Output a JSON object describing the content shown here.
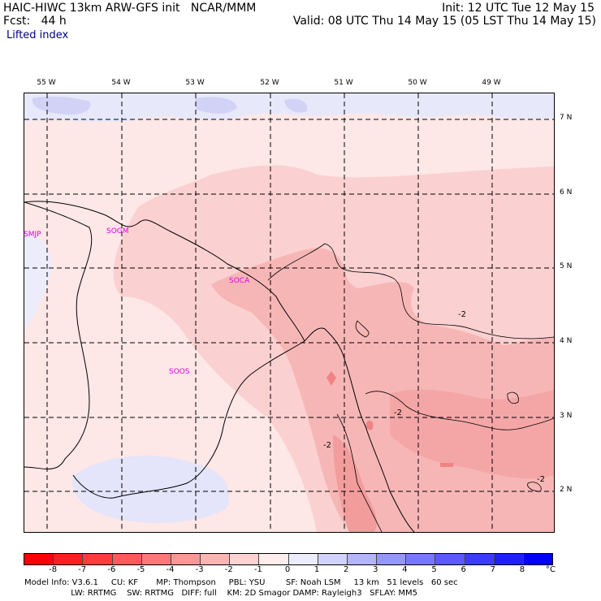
{
  "header": {
    "model_line": "HAIC-HIWC 13km ARW-GFS init   NCAR/MMM",
    "fcst_line": "Fcst:   44 h",
    "init_line": "Init: 12 UTC Tue 12 May 15",
    "valid_line": "Valid: 08 UTC Thu 14 May 15 (05 LST Thu 14 May 15)",
    "field": "Lifted index"
  },
  "axes": {
    "longitudes": [
      "55 W",
      "54 W",
      "53 W",
      "52 W",
      "51 W",
      "50 W",
      "49 W"
    ],
    "latitudes": [
      "7 N",
      "6 N",
      "5 N",
      "4 N",
      "3 N",
      "2 N"
    ]
  },
  "stations": [
    "SMJP",
    "SOGM",
    "SOCA",
    "SOOS"
  ],
  "contour_labels": [
    "-2",
    "-2",
    "-2",
    "-2"
  ],
  "colorbar": {
    "ticks": [
      "-8",
      "-7",
      "-6",
      "-5",
      "-4",
      "-3",
      "-2",
      "-1",
      "0",
      "1",
      "2",
      "3",
      "4",
      "5",
      "6",
      "7",
      "8"
    ],
    "unit": "°C",
    "colors": [
      "#ff0000",
      "#ff1e1e",
      "#ff3c3c",
      "#ff5a5a",
      "#ff7878",
      "#ff9696",
      "#ffb4b4",
      "#ffd2d2",
      "#ffecec",
      "#ececff",
      "#d2d2ff",
      "#b4b4ff",
      "#9696ff",
      "#7878ff",
      "#5a5aff",
      "#3c3cff",
      "#1e1eff",
      "#0000ff"
    ]
  },
  "model_info": {
    "line1": "Model Info: V3.6.1     CU: KF       MP: Thompson     PBL: YSU        SF: Noah LSM     13 km   51 levels   60 sec",
    "line2": "                  LW: RRTMG    SW: RRTMG   DIFF: full    KM: 2D Smagor DAMP: Rayleigh3   SFLAY: MM5"
  }
}
